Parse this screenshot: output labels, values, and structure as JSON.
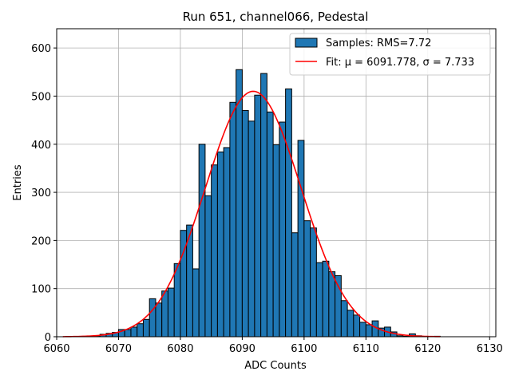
{
  "chart_data": {
    "type": "bar",
    "title": "Run 651, channel066, Pedestal",
    "xlabel": "ADC Counts",
    "ylabel": "Entries",
    "xlim": [
      6060,
      6131
    ],
    "ylim": [
      0,
      640
    ],
    "xticks": [
      6060,
      6070,
      6080,
      6090,
      6100,
      6110,
      6120,
      6130
    ],
    "yticks": [
      0,
      100,
      200,
      300,
      400,
      500,
      600
    ],
    "grid": true,
    "legend_position": "top-right",
    "bin_width": 1,
    "bins_start": [
      6061,
      6062,
      6063,
      6064,
      6065,
      6066,
      6067,
      6068,
      6069,
      6070,
      6071,
      6072,
      6073,
      6074,
      6075,
      6076,
      6077,
      6078,
      6079,
      6080,
      6081,
      6082,
      6083,
      6084,
      6085,
      6086,
      6087,
      6088,
      6089,
      6090,
      6091,
      6092,
      6093,
      6094,
      6095,
      6096,
      6097,
      6098,
      6099,
      6100,
      6101,
      6102,
      6103,
      6104,
      6105,
      6106,
      6107,
      6108,
      6109,
      6110,
      6111,
      6112,
      6113,
      6114,
      6115,
      6116,
      6117,
      6118,
      6119,
      6120,
      6121
    ],
    "counts": [
      0,
      0,
      0,
      1,
      1,
      2,
      5,
      7,
      9,
      15,
      15,
      20,
      27,
      36,
      79,
      70,
      95,
      101,
      152,
      221,
      232,
      141,
      400,
      293,
      357,
      384,
      393,
      487,
      555,
      470,
      448,
      502,
      547,
      467,
      399,
      446,
      515,
      216,
      408,
      241,
      226,
      154,
      157,
      135,
      127,
      75,
      55,
      45,
      30,
      25,
      33,
      18,
      20,
      10,
      2,
      1,
      6,
      2,
      0,
      0,
      1
    ],
    "series": [
      {
        "name": "Samples: RMS=7.72",
        "color": "#1f77b4",
        "edgecolor": "#000000"
      },
      {
        "name": "Fit: μ = 6091.778, σ = 7.733",
        "color": "#ff0000",
        "mu": 6091.778,
        "sigma": 7.733,
        "amplitude": 510,
        "range": [
          6061,
          6122
        ]
      }
    ]
  }
}
